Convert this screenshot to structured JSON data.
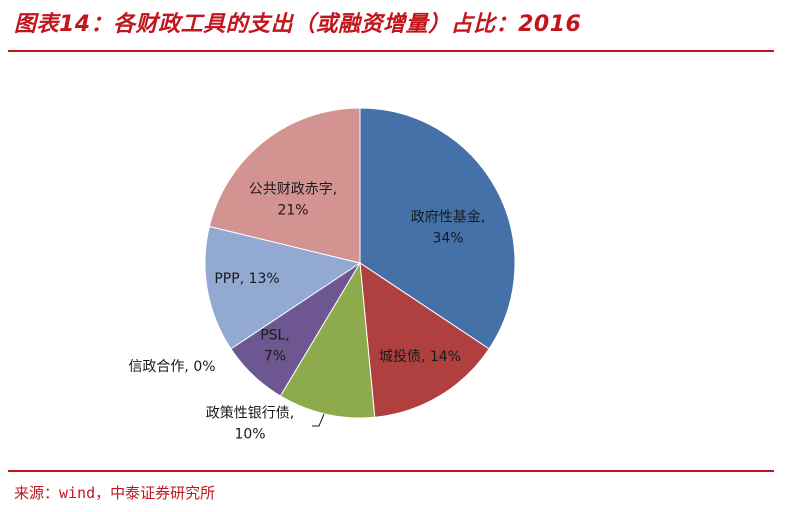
{
  "header": {
    "title": "图表14：各财政工具的支出（或融资增量）占比：2016"
  },
  "footer": {
    "source": "来源：wind，中泰证券研究所"
  },
  "chart_data": {
    "type": "pie",
    "title": "图表14：各财政工具的支出（或融资增量）占比：2016",
    "slices": [
      {
        "label": "政府性基金",
        "value": 34,
        "color": "#4472A8",
        "label_lines": [
          "政府性基金,",
          "34%"
        ]
      },
      {
        "label": "城投债",
        "value": 14,
        "color": "#B0403F",
        "label_lines": [
          "城投债, 14%"
        ]
      },
      {
        "label": "政策性银行债",
        "value": 10,
        "color": "#8DAA4C",
        "label_lines": [
          "政策性银行债,",
          "10%"
        ]
      },
      {
        "label": "PSL",
        "value": 7,
        "color": "#6E5790",
        "label_lines": [
          "PSL,",
          "7%"
        ]
      },
      {
        "label": "信政合作",
        "value": 0,
        "color": "#3E8FA6",
        "label_lines": [
          "信政合作, 0%"
        ]
      },
      {
        "label": "PPP",
        "value": 13,
        "color": "#92A9D2",
        "label_lines": [
          "PPP, 13%"
        ]
      },
      {
        "label": "公共财政赤字",
        "value": 21,
        "color": "#D39391",
        "label_lines": [
          "公共财政赤字,",
          "21%"
        ]
      }
    ],
    "legend": "none"
  }
}
